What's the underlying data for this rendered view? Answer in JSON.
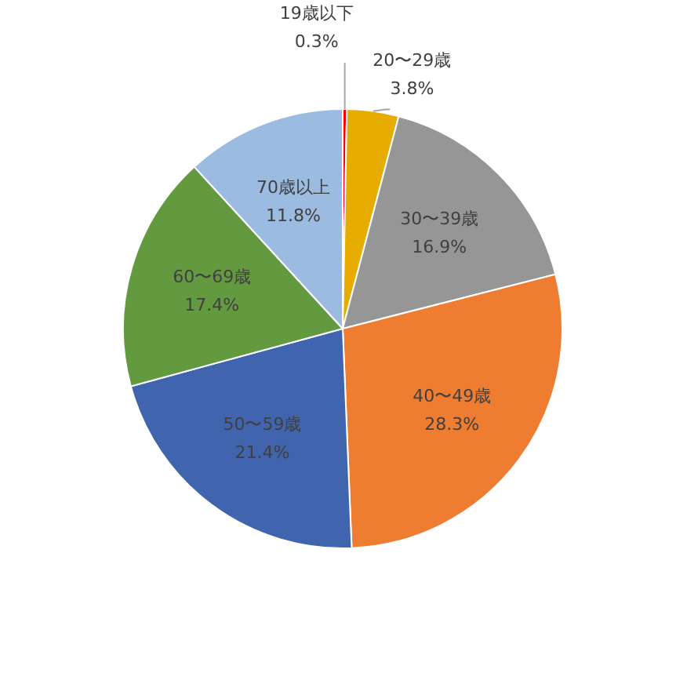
{
  "chart_data": {
    "type": "pie",
    "categories": [
      "19歳以下",
      "20〜29歳",
      "30〜39歳",
      "40〜49歳",
      "50〜59歳",
      "60〜69歳",
      "70歳以上"
    ],
    "values": [
      0.3,
      3.8,
      16.9,
      28.3,
      21.4,
      17.4,
      11.8
    ],
    "colors": [
      "#ff0000",
      "#e6ac00",
      "#969696",
      "#ef7d31",
      "#4064ad",
      "#649a3f",
      "#9bbbe0"
    ],
    "value_labels": [
      "0.3%",
      "3.8%",
      "16.9%",
      "28.3%",
      "21.4%",
      "17.4%",
      "11.8%"
    ]
  }
}
